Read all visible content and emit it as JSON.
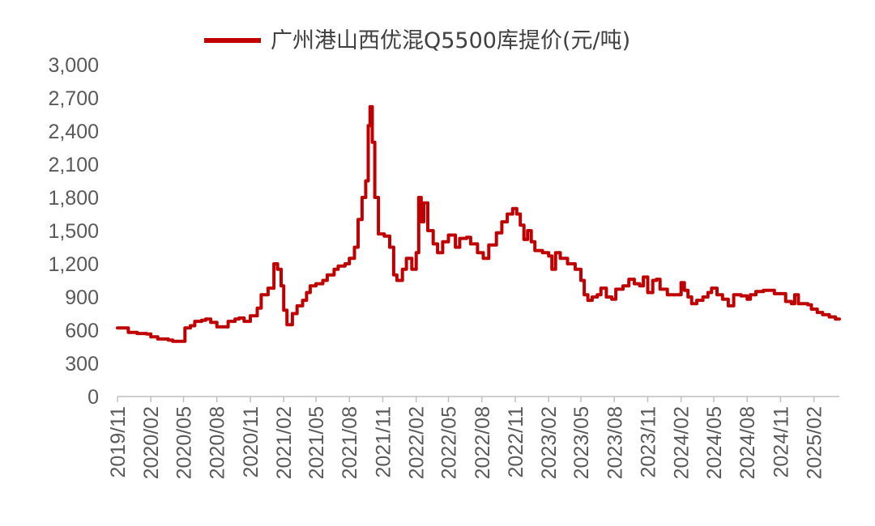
{
  "chart_data": {
    "type": "line",
    "series": [
      {
        "name": "广州港山西优混Q5500库提价(元/吨)",
        "color": "#C00000",
        "points": [
          [
            "2019-11-01",
            620
          ],
          [
            "2019-11-20",
            620
          ],
          [
            "2019-12-01",
            580
          ],
          [
            "2019-12-25",
            570
          ],
          [
            "2020-01-20",
            565
          ],
          [
            "2020-02-01",
            540
          ],
          [
            "2020-02-20",
            520
          ],
          [
            "2020-03-20",
            510
          ],
          [
            "2020-04-01",
            500
          ],
          [
            "2020-05-01",
            500
          ],
          [
            "2020-05-05",
            620
          ],
          [
            "2020-05-20",
            640
          ],
          [
            "2020-06-01",
            680
          ],
          [
            "2020-06-20",
            690
          ],
          [
            "2020-07-01",
            700
          ],
          [
            "2020-07-15",
            670
          ],
          [
            "2020-08-01",
            630
          ],
          [
            "2020-08-20",
            630
          ],
          [
            "2020-09-01",
            680
          ],
          [
            "2020-09-20",
            700
          ],
          [
            "2020-10-01",
            710
          ],
          [
            "2020-10-15",
            680
          ],
          [
            "2020-11-01",
            730
          ],
          [
            "2020-11-20",
            800
          ],
          [
            "2020-12-01",
            920
          ],
          [
            "2020-12-20",
            980
          ],
          [
            "2021-01-05",
            1200
          ],
          [
            "2021-01-15",
            1150
          ],
          [
            "2021-01-25",
            1000
          ],
          [
            "2021-02-01",
            780
          ],
          [
            "2021-02-10",
            650
          ],
          [
            "2021-02-25",
            750
          ],
          [
            "2021-03-10",
            820
          ],
          [
            "2021-03-25",
            870
          ],
          [
            "2021-04-05",
            940
          ],
          [
            "2021-04-15",
            1000
          ],
          [
            "2021-05-01",
            1020
          ],
          [
            "2021-05-20",
            1050
          ],
          [
            "2021-06-01",
            1100
          ],
          [
            "2021-06-20",
            1150
          ],
          [
            "2021-07-01",
            1180
          ],
          [
            "2021-07-20",
            1200
          ],
          [
            "2021-08-01",
            1250
          ],
          [
            "2021-08-15",
            1350
          ],
          [
            "2021-08-25",
            1600
          ],
          [
            "2021-09-05",
            1800
          ],
          [
            "2021-09-15",
            1950
          ],
          [
            "2021-09-22",
            2450
          ],
          [
            "2021-09-27",
            2620
          ],
          [
            "2021-10-03",
            2300
          ],
          [
            "2021-10-10",
            1800
          ],
          [
            "2021-10-20",
            1470
          ],
          [
            "2021-11-05",
            1450
          ],
          [
            "2021-11-20",
            1350
          ],
          [
            "2021-12-01",
            1100
          ],
          [
            "2021-12-10",
            1050
          ],
          [
            "2021-12-25",
            1150
          ],
          [
            "2022-01-05",
            1250
          ],
          [
            "2022-01-20",
            1150
          ],
          [
            "2022-02-01",
            1300
          ],
          [
            "2022-02-08",
            1800
          ],
          [
            "2022-02-15",
            1580
          ],
          [
            "2022-02-22",
            1750
          ],
          [
            "2022-03-05",
            1500
          ],
          [
            "2022-03-20",
            1380
          ],
          [
            "2022-04-01",
            1300
          ],
          [
            "2022-04-15",
            1400
          ],
          [
            "2022-05-01",
            1460
          ],
          [
            "2022-05-20",
            1350
          ],
          [
            "2022-06-01",
            1430
          ],
          [
            "2022-06-20",
            1440
          ],
          [
            "2022-07-01",
            1380
          ],
          [
            "2022-07-20",
            1300
          ],
          [
            "2022-08-05",
            1250
          ],
          [
            "2022-08-20",
            1370
          ],
          [
            "2022-09-10",
            1480
          ],
          [
            "2022-09-25",
            1580
          ],
          [
            "2022-10-10",
            1650
          ],
          [
            "2022-10-25",
            1700
          ],
          [
            "2022-11-05",
            1650
          ],
          [
            "2022-11-15",
            1550
          ],
          [
            "2022-11-25",
            1420
          ],
          [
            "2022-12-05",
            1500
          ],
          [
            "2022-12-15",
            1400
          ],
          [
            "2022-12-25",
            1320
          ],
          [
            "2023-01-15",
            1300
          ],
          [
            "2023-02-01",
            1270
          ],
          [
            "2023-02-10",
            1150
          ],
          [
            "2023-02-20",
            1300
          ],
          [
            "2023-03-05",
            1250
          ],
          [
            "2023-03-25",
            1200
          ],
          [
            "2023-04-15",
            1150
          ],
          [
            "2023-05-01",
            1050
          ],
          [
            "2023-05-10",
            920
          ],
          [
            "2023-05-20",
            870
          ],
          [
            "2023-06-01",
            900
          ],
          [
            "2023-06-15",
            920
          ],
          [
            "2023-06-25",
            980
          ],
          [
            "2023-07-10",
            900
          ],
          [
            "2023-07-25",
            880
          ],
          [
            "2023-08-05",
            970
          ],
          [
            "2023-08-25",
            1000
          ],
          [
            "2023-09-10",
            1060
          ],
          [
            "2023-09-25",
            1020
          ],
          [
            "2023-10-10",
            1000
          ],
          [
            "2023-10-20",
            1080
          ],
          [
            "2023-11-01",
            940
          ],
          [
            "2023-11-15",
            1050
          ],
          [
            "2023-11-25",
            1060
          ],
          [
            "2023-12-05",
            970
          ],
          [
            "2023-12-25",
            920
          ],
          [
            "2024-01-15",
            920
          ],
          [
            "2024-02-01",
            1030
          ],
          [
            "2024-02-10",
            960
          ],
          [
            "2024-02-20",
            900
          ],
          [
            "2024-03-01",
            840
          ],
          [
            "2024-03-15",
            870
          ],
          [
            "2024-04-01",
            900
          ],
          [
            "2024-04-15",
            940
          ],
          [
            "2024-04-25",
            980
          ],
          [
            "2024-05-10",
            920
          ],
          [
            "2024-05-25",
            880
          ],
          [
            "2024-06-10",
            820
          ],
          [
            "2024-06-25",
            920
          ],
          [
            "2024-07-15",
            910
          ],
          [
            "2024-08-01",
            880
          ],
          [
            "2024-08-10",
            920
          ],
          [
            "2024-08-25",
            950
          ],
          [
            "2024-09-15",
            960
          ],
          [
            "2024-10-01",
            960
          ],
          [
            "2024-10-15",
            930
          ],
          [
            "2024-11-01",
            930
          ],
          [
            "2024-11-15",
            860
          ],
          [
            "2024-12-01",
            840
          ],
          [
            "2024-12-10",
            920
          ],
          [
            "2024-12-20",
            840
          ],
          [
            "2025-01-15",
            830
          ],
          [
            "2025-01-25",
            790
          ],
          [
            "2025-02-10",
            760
          ],
          [
            "2025-02-25",
            740
          ],
          [
            "2025-03-15",
            720
          ],
          [
            "2025-04-01",
            700
          ],
          [
            "2025-04-12",
            700
          ]
        ]
      }
    ],
    "x_tick_labels": [
      "2019/11",
      "2020/02",
      "2020/05",
      "2020/08",
      "2020/11",
      "2021/02",
      "2021/05",
      "2021/08",
      "2021/11",
      "2022/02",
      "2022/05",
      "2022/08",
      "2022/11",
      "2023/02",
      "2023/05",
      "2023/08",
      "2023/11",
      "2024/02",
      "2024/05",
      "2024/08",
      "2024/11",
      "2025/02"
    ],
    "y_tick_labels": [
      "0",
      "300",
      "600",
      "900",
      "1,200",
      "1,500",
      "1,800",
      "2,100",
      "2,400",
      "2,700",
      "3,000"
    ],
    "xlim": [
      "2019-11-01",
      "2025-04-12"
    ],
    "ylim": [
      0,
      3000
    ],
    "legend_position": "top",
    "grid": false
  }
}
